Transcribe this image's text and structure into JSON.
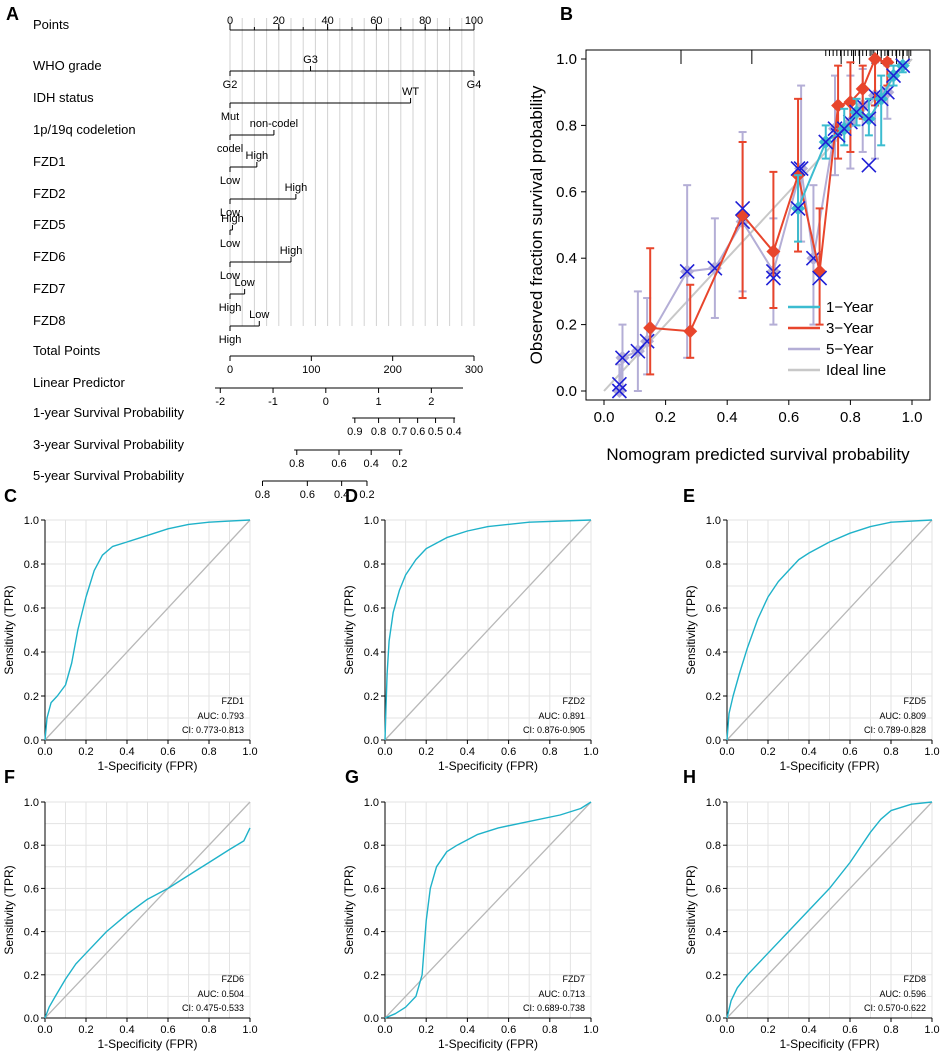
{
  "colors": {
    "roc": "#1fb2c9",
    "diag": "#b8b8b8",
    "grid": "#e3e3e3",
    "one_year": "#3cbcd0",
    "three_year": "#e8452c",
    "five_year": "#b4aed6",
    "ideal": "#c8c8c8",
    "cross": "#1f1fd6"
  },
  "chart_data": [
    {
      "panel": "A",
      "type": "nomogram",
      "axes": [
        {
          "label": "Points",
          "range": [
            0,
            100
          ],
          "ticks": [
            {
              "v": 0,
              "t": "0"
            },
            {
              "v": 20,
              "t": "20"
            },
            {
              "v": 40,
              "t": "40"
            },
            {
              "v": 60,
              "t": "60"
            },
            {
              "v": 80,
              "t": "80"
            },
            {
              "v": 100,
              "t": "100"
            }
          ]
        },
        {
          "label": "WHO grade",
          "range": [
            0,
            100
          ],
          "cats": [
            {
              "v": 0,
              "t": "G2",
              "pos": "below"
            },
            {
              "v": 33,
              "t": "G3",
              "pos": "above"
            },
            {
              "v": 100,
              "t": "G4",
              "pos": "below"
            }
          ]
        },
        {
          "label": "IDH status",
          "range": [
            0,
            74
          ],
          "cats": [
            {
              "v": 0,
              "t": "Mut",
              "pos": "below"
            },
            {
              "v": 74,
              "t": "WT",
              "pos": "above"
            }
          ]
        },
        {
          "label": "1p/19q codeletion",
          "range": [
            0,
            18
          ],
          "cats": [
            {
              "v": 0,
              "t": "codel",
              "pos": "below"
            },
            {
              "v": 18,
              "t": "non-codel",
              "pos": "above"
            }
          ]
        },
        {
          "label": "FZD1",
          "range": [
            0,
            11
          ],
          "cats": [
            {
              "v": 0,
              "t": "Low",
              "pos": "below"
            },
            {
              "v": 11,
              "t": "High",
              "pos": "above"
            }
          ]
        },
        {
          "label": "FZD2",
          "range": [
            0,
            27
          ],
          "cats": [
            {
              "v": 0,
              "t": "Low",
              "pos": "below"
            },
            {
              "v": 27,
              "t": "High",
              "pos": "above"
            }
          ]
        },
        {
          "label": "FZD5",
          "range": [
            0,
            1
          ],
          "cats": [
            {
              "v": 0,
              "t": "Low",
              "pos": "below"
            },
            {
              "v": 1,
              "t": "High",
              "pos": "above"
            }
          ]
        },
        {
          "label": "FZD6",
          "range": [
            0,
            25
          ],
          "cats": [
            {
              "v": 0,
              "t": "Low",
              "pos": "below"
            },
            {
              "v": 25,
              "t": "High",
              "pos": "above"
            }
          ]
        },
        {
          "label": "FZD7",
          "range": [
            0,
            6
          ],
          "cats": [
            {
              "v": 0,
              "t": "High",
              "pos": "below"
            },
            {
              "v": 6,
              "t": "Low",
              "pos": "above"
            }
          ]
        },
        {
          "label": "FZD8",
          "range": [
            0,
            12
          ],
          "cats": [
            {
              "v": 0,
              "t": "High",
              "pos": "below"
            },
            {
              "v": 12,
              "t": "Low",
              "pos": "above"
            }
          ]
        },
        {
          "label": "Total Points",
          "range": [
            0,
            300
          ],
          "ticks": [
            {
              "v": 0,
              "t": "0"
            },
            {
              "v": 100,
              "t": "100"
            },
            {
              "v": 200,
              "t": "200"
            },
            {
              "v": 300,
              "t": "300"
            }
          ]
        },
        {
          "label": "Linear Predictor",
          "range": [
            -2.1,
            2.6
          ],
          "ticks": [
            {
              "v": -2,
              "t": "-2"
            },
            {
              "v": -1,
              "t": "-1"
            },
            {
              "v": 0,
              "t": "0"
            },
            {
              "v": 1,
              "t": "1"
            },
            {
              "v": 2,
              "t": "2"
            }
          ]
        },
        {
          "label": "1-year Survival Probability",
          "range": [
            0.5,
            2.45
          ],
          "ticks": [
            {
              "v": 0.55,
              "t": "0.9"
            },
            {
              "v": 1.0,
              "t": "0.8"
            },
            {
              "v": 1.4,
              "t": "0.7"
            },
            {
              "v": 1.74,
              "t": "0.6"
            },
            {
              "v": 2.08,
              "t": "0.5"
            },
            {
              "v": 2.43,
              "t": "0.4"
            }
          ]
        },
        {
          "label": "3-year Survival Probability",
          "range": [
            -0.6,
            1.45
          ],
          "ticks": [
            {
              "v": -0.55,
              "t": "0.8"
            },
            {
              "v": 0.25,
              "t": "0.6"
            },
            {
              "v": 0.86,
              "t": "0.4"
            },
            {
              "v": 1.4,
              "t": "0.2"
            }
          ]
        },
        {
          "label": "5-year Survival Probability",
          "range": [
            -1.2,
            0.78
          ],
          "ticks": [
            {
              "v": -1.2,
              "t": "0.8"
            },
            {
              "v": -0.35,
              "t": "0.6"
            },
            {
              "v": 0.3,
              "t": "0.4"
            },
            {
              "v": 0.78,
              "t": "0.2"
            }
          ]
        }
      ]
    },
    {
      "panel": "B",
      "type": "line",
      "xlabel": "Nomogram predicted survival probability",
      "ylabel": "Observed fraction survival probability",
      "xlim": [
        0,
        1
      ],
      "ylim": [
        0,
        1
      ],
      "ticks": [
        0.0,
        0.2,
        0.4,
        0.6,
        0.8,
        1.0
      ],
      "tick_labels": [
        "0.0",
        "0.2",
        "0.4",
        "0.6",
        "0.8",
        "1.0"
      ],
      "rug": [
        0.25,
        0.48,
        0.77,
        0.81,
        0.83,
        0.87,
        0.9,
        0.92,
        0.95,
        0.97,
        0.99
      ],
      "series": [
        {
          "name": "1−Year",
          "points": [
            [
              0.63,
              0.55,
              0.45,
              0.65
            ],
            [
              0.72,
              0.75,
              0.7,
              0.8
            ],
            [
              0.78,
              0.79,
              0.74,
              0.85
            ],
            [
              0.82,
              0.84,
              0.8,
              0.88
            ],
            [
              0.86,
              0.82,
              0.77,
              0.88
            ],
            [
              0.9,
              0.88,
              0.74,
              0.95
            ],
            [
              0.94,
              0.95,
              0.92,
              0.98
            ],
            [
              0.97,
              0.98,
              0.96,
              0.99
            ]
          ],
          "cross": true
        },
        {
          "name": "3−Year",
          "points": [
            [
              0.15,
              0.19,
              0.05,
              0.43
            ],
            [
              0.28,
              0.18,
              0.1,
              0.32
            ],
            [
              0.45,
              0.53,
              0.28,
              0.75
            ],
            [
              0.55,
              0.42,
              0.25,
              0.66
            ],
            [
              0.63,
              0.65,
              0.42,
              0.88
            ],
            [
              0.7,
              0.36,
              0.2,
              0.55
            ],
            [
              0.76,
              0.86,
              0.7,
              0.98
            ],
            [
              0.8,
              0.87,
              0.72,
              0.99
            ],
            [
              0.84,
              0.91,
              0.82,
              0.98
            ],
            [
              0.88,
              1.0,
              0.86,
              1.0
            ],
            [
              0.92,
              0.99,
              0.92,
              1.0
            ]
          ],
          "cross": false
        },
        {
          "name": "5−Year",
          "points": [
            [
              0.05,
              0.0,
              0.0,
              0.08
            ],
            [
              0.06,
              0.1,
              0.0,
              0.2
            ],
            [
              0.11,
              0.12,
              0.0,
              0.3
            ],
            [
              0.14,
              0.15,
              0.05,
              0.28
            ],
            [
              0.27,
              0.36,
              0.1,
              0.62
            ],
            [
              0.36,
              0.37,
              0.22,
              0.52
            ],
            [
              0.45,
              0.51,
              0.3,
              0.78
            ],
            [
              0.55,
              0.36,
              0.2,
              0.52
            ],
            [
              0.64,
              0.67,
              0.45,
              0.92
            ],
            [
              0.68,
              0.4,
              0.2,
              0.62
            ],
            [
              0.75,
              0.79,
              0.65,
              0.95
            ],
            [
              0.8,
              0.81,
              0.67,
              0.95
            ],
            [
              0.84,
              0.86,
              0.72,
              0.97
            ],
            [
              0.88,
              0.89,
              0.7,
              0.99
            ],
            [
              0.92,
              0.9,
              0.82,
              0.98
            ]
          ],
          "cross": true
        }
      ],
      "cross_extra": [
        [
          0.05,
          0.02
        ],
        [
          0.45,
          0.55
        ],
        [
          0.55,
          0.34
        ],
        [
          0.63,
          0.67
        ],
        [
          0.7,
          0.34
        ],
        [
          0.76,
          0.77
        ],
        [
          0.86,
          0.68
        ]
      ],
      "legend": [
        "1−Year",
        "3−Year",
        "5−Year",
        "Ideal line"
      ],
      "legend_position": "bottom-right"
    }
  ],
  "roc_common": {
    "xlabel": "1-Specificity (FPR)",
    "ylabel": "Sensitivity (TPR)",
    "ticks": [
      0.0,
      0.2,
      0.4,
      0.6,
      0.8,
      1.0
    ],
    "tick_labels": [
      "0.0",
      "0.2",
      "0.4",
      "0.6",
      "0.8",
      "1.0"
    ]
  },
  "roc_panels": [
    {
      "panel": "C",
      "name": "FZD1",
      "auc": "AUC: 0.793",
      "ci": "CI: 0.773-0.813",
      "curve": [
        [
          0,
          0
        ],
        [
          0.01,
          0.1
        ],
        [
          0.03,
          0.17
        ],
        [
          0.06,
          0.2
        ],
        [
          0.1,
          0.25
        ],
        [
          0.13,
          0.35
        ],
        [
          0.16,
          0.5
        ],
        [
          0.2,
          0.65
        ],
        [
          0.24,
          0.77
        ],
        [
          0.28,
          0.84
        ],
        [
          0.33,
          0.88
        ],
        [
          0.4,
          0.9
        ],
        [
          0.5,
          0.93
        ],
        [
          0.6,
          0.96
        ],
        [
          0.7,
          0.98
        ],
        [
          0.8,
          0.99
        ],
        [
          0.9,
          0.995
        ],
        [
          1,
          1
        ]
      ]
    },
    {
      "panel": "D",
      "name": "FZD2",
      "auc": "AUC: 0.891",
      "ci": "CI: 0.876-0.905",
      "curve": [
        [
          0,
          0
        ],
        [
          0.005,
          0.15
        ],
        [
          0.01,
          0.3
        ],
        [
          0.02,
          0.45
        ],
        [
          0.04,
          0.58
        ],
        [
          0.07,
          0.68
        ],
        [
          0.1,
          0.75
        ],
        [
          0.15,
          0.82
        ],
        [
          0.2,
          0.87
        ],
        [
          0.3,
          0.92
        ],
        [
          0.4,
          0.95
        ],
        [
          0.5,
          0.97
        ],
        [
          0.7,
          0.99
        ],
        [
          1,
          1
        ]
      ]
    },
    {
      "panel": "E",
      "name": "FZD5",
      "auc": "AUC: 0.809",
      "ci": "CI: 0.789-0.828",
      "curve": [
        [
          0,
          0
        ],
        [
          0.01,
          0.12
        ],
        [
          0.03,
          0.2
        ],
        [
          0.06,
          0.3
        ],
        [
          0.1,
          0.42
        ],
        [
          0.15,
          0.55
        ],
        [
          0.2,
          0.65
        ],
        [
          0.25,
          0.72
        ],
        [
          0.3,
          0.77
        ],
        [
          0.35,
          0.82
        ],
        [
          0.4,
          0.85
        ],
        [
          0.5,
          0.9
        ],
        [
          0.6,
          0.94
        ],
        [
          0.7,
          0.97
        ],
        [
          0.8,
          0.99
        ],
        [
          1,
          1
        ]
      ]
    },
    {
      "panel": "F",
      "name": "FZD6",
      "auc": "AUC: 0.504",
      "ci": "CI: 0.475-0.533",
      "curve": [
        [
          0,
          0
        ],
        [
          0.02,
          0.05
        ],
        [
          0.05,
          0.1
        ],
        [
          0.1,
          0.18
        ],
        [
          0.15,
          0.25
        ],
        [
          0.2,
          0.3
        ],
        [
          0.3,
          0.4
        ],
        [
          0.4,
          0.48
        ],
        [
          0.5,
          0.55
        ],
        [
          0.6,
          0.6
        ],
        [
          0.7,
          0.66
        ],
        [
          0.8,
          0.72
        ],
        [
          0.9,
          0.78
        ],
        [
          0.97,
          0.82
        ],
        [
          1,
          0.88
        ]
      ]
    },
    {
      "panel": "G",
      "name": "FZD7",
      "auc": "AUC: 0.713",
      "ci": "CI: 0.689-0.738",
      "curve": [
        [
          0,
          0
        ],
        [
          0.05,
          0.02
        ],
        [
          0.1,
          0.05
        ],
        [
          0.15,
          0.1
        ],
        [
          0.18,
          0.2
        ],
        [
          0.2,
          0.45
        ],
        [
          0.22,
          0.6
        ],
        [
          0.25,
          0.7
        ],
        [
          0.3,
          0.77
        ],
        [
          0.35,
          0.8
        ],
        [
          0.45,
          0.85
        ],
        [
          0.55,
          0.88
        ],
        [
          0.7,
          0.91
        ],
        [
          0.85,
          0.94
        ],
        [
          0.95,
          0.97
        ],
        [
          1,
          1
        ]
      ]
    },
    {
      "panel": "H",
      "name": "FZD8",
      "auc": "AUC: 0.596",
      "ci": "CI: 0.570-0.622",
      "curve": [
        [
          0,
          0
        ],
        [
          0.02,
          0.08
        ],
        [
          0.05,
          0.14
        ],
        [
          0.1,
          0.2
        ],
        [
          0.2,
          0.3
        ],
        [
          0.3,
          0.4
        ],
        [
          0.4,
          0.5
        ],
        [
          0.5,
          0.6
        ],
        [
          0.6,
          0.72
        ],
        [
          0.7,
          0.86
        ],
        [
          0.75,
          0.92
        ],
        [
          0.8,
          0.96
        ],
        [
          0.9,
          0.99
        ],
        [
          1,
          1
        ]
      ]
    }
  ]
}
